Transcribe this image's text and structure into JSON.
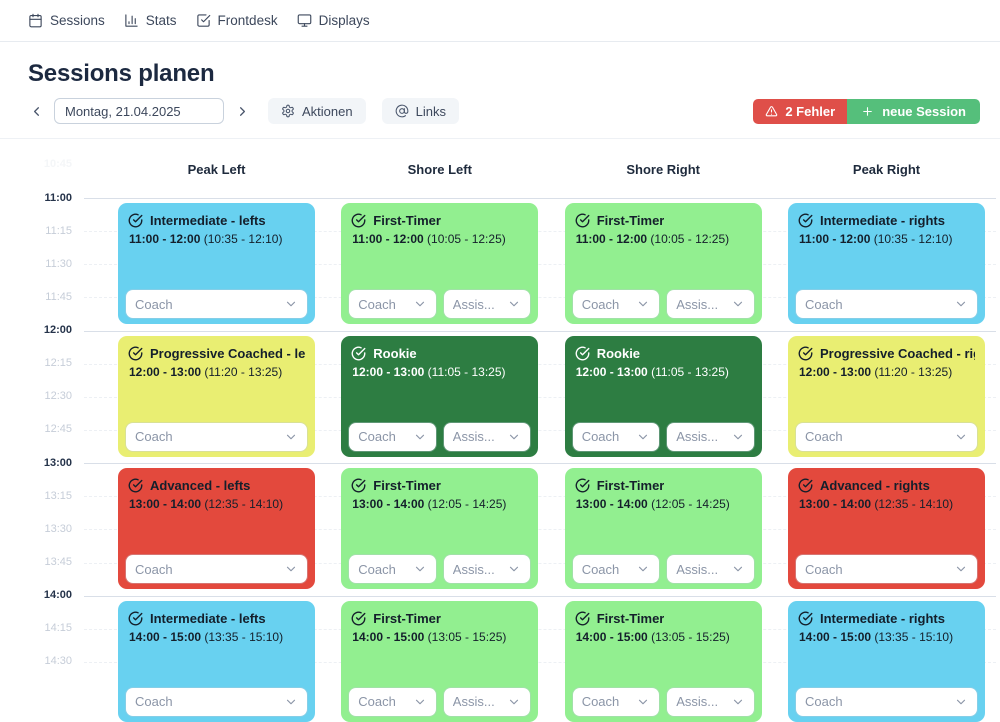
{
  "nav": {
    "items": [
      {
        "label": "Sessions",
        "icon": "calendar-icon"
      },
      {
        "label": "Stats",
        "icon": "bar-chart-icon"
      },
      {
        "label": "Frontdesk",
        "icon": "check-square-icon"
      },
      {
        "label": "Displays",
        "icon": "monitor-icon"
      }
    ]
  },
  "header": {
    "title": "Sessions planen",
    "date_value": "Montag, 21.04.2025",
    "actions_button": "Aktionen",
    "links_button": "Links",
    "error_button": "2 Fehler",
    "new_session_button": "neue Session",
    "colors": {
      "error": "#df4f49",
      "new_session": "#55bf7b"
    }
  },
  "calendar": {
    "columns": [
      "Peak Left",
      "Shore Left",
      "Shore Right",
      "Peak Right"
    ],
    "time_labels": [
      {
        "label": "10:45",
        "type": "faint"
      },
      {
        "label": "11:00",
        "type": "hour"
      },
      {
        "label": "11:15",
        "type": "quarter"
      },
      {
        "label": "11:30",
        "type": "quarter"
      },
      {
        "label": "11:45",
        "type": "quarter"
      },
      {
        "label": "12:00",
        "type": "hour"
      },
      {
        "label": "12:15",
        "type": "quarter"
      },
      {
        "label": "12:30",
        "type": "quarter"
      },
      {
        "label": "12:45",
        "type": "quarter"
      },
      {
        "label": "13:00",
        "type": "hour"
      },
      {
        "label": "13:15",
        "type": "quarter"
      },
      {
        "label": "13:30",
        "type": "quarter"
      },
      {
        "label": "13:45",
        "type": "quarter"
      },
      {
        "label": "14:00",
        "type": "hour"
      },
      {
        "label": "14:15",
        "type": "quarter"
      },
      {
        "label": "14:30",
        "type": "quarter"
      }
    ],
    "select_labels": {
      "coach": "Coach",
      "assistant": "Assis..."
    },
    "session_colors": {
      "blue": "#68d1f0",
      "green_light": "#92ef90",
      "green_dark": "#2d7d42",
      "yellow": "#e9ee72",
      "red": "#e3493d"
    },
    "sessions": [
      {
        "row": 0,
        "col": 0,
        "title": "Intermediate - lefts",
        "time": "11:00 - 12:00",
        "window": "(10:35 - 12:10)",
        "color": "blue",
        "selects": [
          "coach"
        ]
      },
      {
        "row": 0,
        "col": 1,
        "title": "First-Timer",
        "time": "11:00 - 12:00",
        "window": "(10:05 - 12:25)",
        "color": "green_light",
        "selects": [
          "coach",
          "assistant"
        ]
      },
      {
        "row": 0,
        "col": 2,
        "title": "First-Timer",
        "time": "11:00 - 12:00",
        "window": "(10:05 - 12:25)",
        "color": "green_light",
        "selects": [
          "coach",
          "assistant"
        ]
      },
      {
        "row": 0,
        "col": 3,
        "title": "Intermediate - rights",
        "time": "11:00 - 12:00",
        "window": "(10:35 - 12:10)",
        "color": "blue",
        "selects": [
          "coach"
        ]
      },
      {
        "row": 1,
        "col": 0,
        "title": "Progressive Coached - lefts",
        "time": "12:00 - 13:00",
        "window": "(11:20 - 13:25)",
        "color": "yellow",
        "selects": [
          "coach"
        ]
      },
      {
        "row": 1,
        "col": 1,
        "title": "Rookie",
        "time": "12:00 - 13:00",
        "window": "(11:05 - 13:25)",
        "color": "green_dark",
        "selects": [
          "coach",
          "assistant"
        ]
      },
      {
        "row": 1,
        "col": 2,
        "title": "Rookie",
        "time": "12:00 - 13:00",
        "window": "(11:05 - 13:25)",
        "color": "green_dark",
        "selects": [
          "coach",
          "assistant"
        ]
      },
      {
        "row": 1,
        "col": 3,
        "title": "Progressive Coached - rights",
        "time": "12:00 - 13:00",
        "window": "(11:20 - 13:25)",
        "color": "yellow",
        "selects": [
          "coach"
        ]
      },
      {
        "row": 2,
        "col": 0,
        "title": "Advanced - lefts",
        "time": "13:00 - 14:00",
        "window": "(12:35 - 14:10)",
        "color": "red",
        "selects": [
          "coach"
        ]
      },
      {
        "row": 2,
        "col": 1,
        "title": "First-Timer",
        "time": "13:00 - 14:00",
        "window": "(12:05 - 14:25)",
        "color": "green_light",
        "selects": [
          "coach",
          "assistant"
        ]
      },
      {
        "row": 2,
        "col": 2,
        "title": "First-Timer",
        "time": "13:00 - 14:00",
        "window": "(12:05 - 14:25)",
        "color": "green_light",
        "selects": [
          "coach",
          "assistant"
        ]
      },
      {
        "row": 2,
        "col": 3,
        "title": "Advanced - rights",
        "time": "13:00 - 14:00",
        "window": "(12:35 - 14:10)",
        "color": "red",
        "selects": [
          "coach"
        ]
      },
      {
        "row": 3,
        "col": 0,
        "title": "Intermediate - lefts",
        "time": "14:00 - 15:00",
        "window": "(13:35 - 15:10)",
        "color": "blue",
        "selects": [
          "coach"
        ]
      },
      {
        "row": 3,
        "col": 1,
        "title": "First-Timer",
        "time": "14:00 - 15:00",
        "window": "(13:05 - 15:25)",
        "color": "green_light",
        "selects": [
          "coach",
          "assistant"
        ]
      },
      {
        "row": 3,
        "col": 2,
        "title": "First-Timer",
        "time": "14:00 - 15:00",
        "window": "(13:05 - 15:25)",
        "color": "green_light",
        "selects": [
          "coach",
          "assistant"
        ]
      },
      {
        "row": 3,
        "col": 3,
        "title": "Intermediate - rights",
        "time": "14:00 - 15:00",
        "window": "(13:35 - 15:10)",
        "color": "blue",
        "selects": [
          "coach"
        ]
      }
    ]
  }
}
